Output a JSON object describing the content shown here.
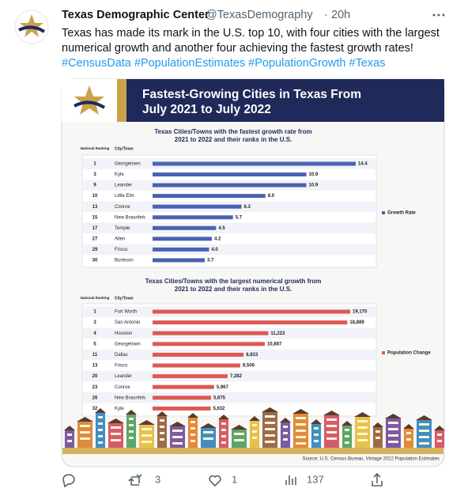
{
  "tweet": {
    "author": "Texas Demographic Center",
    "handle": "@TexasDemography",
    "time": "20h",
    "text_lines": [
      "Texas has made its mark in the U.S. top 10, with four cities with the largest",
      "numerical growth and another four achieving the fastest growth rates!"
    ],
    "hashtags": "#CensusData #PopulationEstimates #PopulationGrowth #Texas",
    "retweets": 3,
    "likes": 1,
    "views": 137
  },
  "infographic": {
    "title_lines": [
      "Fastest-Growing Cities in Texas From",
      "July 2021 to July 2022"
    ],
    "source": "Source: U.S. Census Bureau, Vintage 2022 Population Estimates"
  },
  "chart_data": [
    {
      "type": "bar",
      "orientation": "horizontal",
      "title_lines": [
        "Texas Cities/Towns with the fastest growth rate from",
        "2021 to 2022 and their ranks in the U.S."
      ],
      "rank_header": "National Ranking",
      "category_header": "City/Town",
      "ranks": [
        1,
        3,
        9,
        10,
        13,
        15,
        17,
        27,
        29,
        30
      ],
      "categories": [
        "Georgetown",
        "Kyle",
        "Leander",
        "Little Elm",
        "Conroe",
        "New Braunfels",
        "Temple",
        "Allen",
        "Frisco",
        "Burleson"
      ],
      "series": [
        {
          "name": "Growth Rate",
          "color": "#4a62b0",
          "values": [
            14.4,
            10.9,
            10.9,
            8.0,
            6.3,
            5.7,
            4.5,
            4.2,
            4.0,
            3.7
          ],
          "value_labels": [
            "14.4",
            "10.9",
            "10.9",
            "8.0",
            "6.3",
            "5.7",
            "4.5",
            "4.2",
            "4.0",
            "3.7"
          ]
        }
      ]
    },
    {
      "type": "bar",
      "orientation": "horizontal",
      "title_lines": [
        "Texas Cities/Towns with the largest numerical growth from",
        "2021 to 2022 and their ranks in the U.S."
      ],
      "rank_header": "National Ranking",
      "category_header": "City/Town",
      "ranks": [
        1,
        3,
        4,
        5,
        11,
        13,
        20,
        23,
        26,
        32
      ],
      "categories": [
        "Fort Worth",
        "San Antonio",
        "Houston",
        "Georgetown",
        "Dallas",
        "Frisco",
        "Leander",
        "Conroe",
        "New Braunfels",
        "Kyle"
      ],
      "series": [
        {
          "name": "Population Change",
          "color": "#dc5a52",
          "values": [
            19170,
            18889,
            11223,
            10887,
            8833,
            8506,
            7282,
            5967,
            5675,
            5632
          ],
          "value_labels": [
            "19,170",
            "18,889",
            "11,223",
            "10,887",
            "8,833",
            "8,506",
            "7,282",
            "5,967",
            "5,675",
            "5,632"
          ]
        }
      ]
    }
  ]
}
